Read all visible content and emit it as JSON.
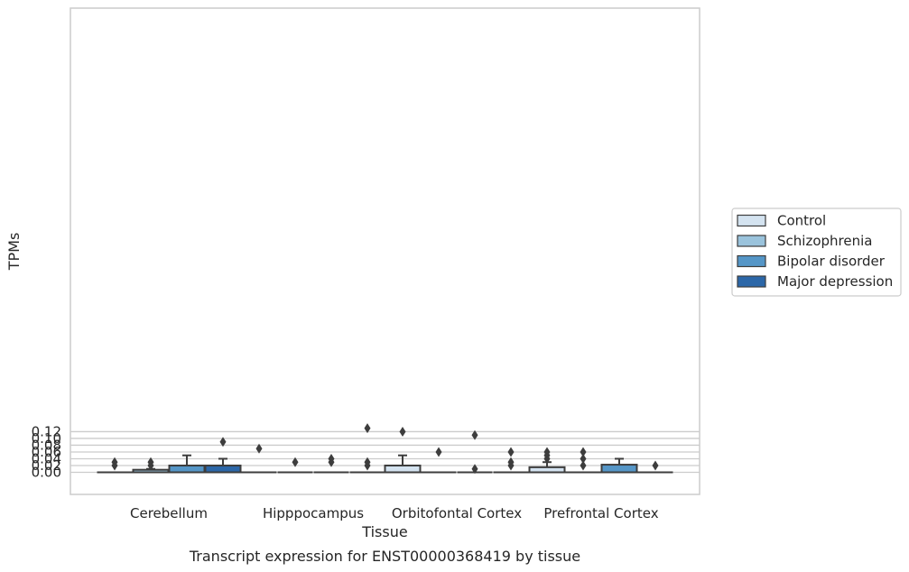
{
  "chart_data": {
    "type": "box",
    "title": "Transcript expression for ENST00000368419 by tissue",
    "xlabel": "Tissue",
    "ylabel": "TPMs",
    "ylim": [
      -0.0065,
      0.1365
    ],
    "yticks": [
      "0.00",
      "0.02",
      "0.04",
      "0.06",
      "0.08",
      "0.10",
      "0.12"
    ],
    "grid": "horizontal",
    "legend_position": "right",
    "categories": [
      "Cerebellum",
      "Hipppocampus",
      "Orbitofontal Cortex",
      "Prefrontal Cortex"
    ],
    "colors": [
      "#d4e3f0",
      "#9ac3dc",
      "#5596c7",
      "#2c67a8"
    ],
    "edge_color": "#3d3d3d",
    "series": [
      {
        "name": "Control",
        "boxes": [
          {
            "q1": 0,
            "median": 0,
            "q3": 0,
            "whisker_low": 0,
            "whisker_high": 0,
            "outliers": [
              0.02,
              0.03
            ]
          },
          {
            "q1": 0,
            "median": 0,
            "q3": 0,
            "whisker_low": 0,
            "whisker_high": 0,
            "outliers": [
              0.07
            ]
          },
          {
            "q1": 0,
            "median": 0,
            "q3": 0.02,
            "whisker_low": 0,
            "whisker_high": 0.05,
            "outliers": [
              0.12
            ]
          },
          {
            "q1": 0,
            "median": 0,
            "q3": 0.015,
            "whisker_low": 0,
            "whisker_high": 0.03,
            "outliers": [
              0.04,
              0.05,
              0.06
            ]
          }
        ]
      },
      {
        "name": "Schizophrenia",
        "boxes": [
          {
            "q1": 0,
            "median": 0,
            "q3": 0.0075,
            "whisker_low": 0,
            "whisker_high": 0.01,
            "outliers": [
              0.02,
              0.03
            ]
          },
          {
            "q1": 0,
            "median": 0,
            "q3": 0,
            "whisker_low": 0,
            "whisker_high": 0,
            "outliers": [
              0.03
            ]
          },
          {
            "q1": 0,
            "median": 0,
            "q3": 0,
            "whisker_low": 0,
            "whisker_high": 0,
            "outliers": [
              0.06
            ]
          },
          {
            "q1": 0,
            "median": 0,
            "q3": 0,
            "whisker_low": 0,
            "whisker_high": 0,
            "outliers": [
              0.02,
              0.04,
              0.06
            ]
          }
        ]
      },
      {
        "name": "Bipolar disorder",
        "boxes": [
          {
            "q1": 0,
            "median": 0,
            "q3": 0.02,
            "whisker_low": 0,
            "whisker_high": 0.05,
            "outliers": []
          },
          {
            "q1": 0,
            "median": 0,
            "q3": 0,
            "whisker_low": 0,
            "whisker_high": 0,
            "outliers": [
              0.03,
              0.04
            ]
          },
          {
            "q1": 0,
            "median": 0,
            "q3": 0,
            "whisker_low": 0,
            "whisker_high": 0,
            "outliers": [
              0.01,
              0.11
            ]
          },
          {
            "q1": 0,
            "median": 0,
            "q3": 0.0225,
            "whisker_low": 0,
            "whisker_high": 0.04,
            "outliers": []
          }
        ]
      },
      {
        "name": "Major depression",
        "boxes": [
          {
            "q1": 0,
            "median": 0,
            "q3": 0.02,
            "whisker_low": 0,
            "whisker_high": 0.04,
            "outliers": [
              0.09
            ]
          },
          {
            "q1": 0,
            "median": 0,
            "q3": 0,
            "whisker_low": 0,
            "whisker_high": 0,
            "outliers": [
              0.02,
              0.03,
              0.13
            ]
          },
          {
            "q1": 0,
            "median": 0,
            "q3": 0,
            "whisker_low": 0,
            "whisker_high": 0,
            "outliers": [
              0.02,
              0.03,
              0.06
            ]
          },
          {
            "q1": 0,
            "median": 0,
            "q3": 0,
            "whisker_low": 0,
            "whisker_high": 0,
            "outliers": [
              0.02
            ]
          }
        ]
      }
    ]
  }
}
